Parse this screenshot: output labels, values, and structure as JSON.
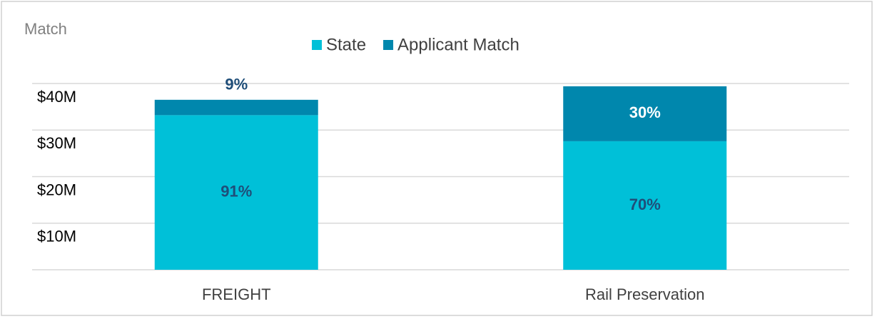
{
  "chart_data": {
    "type": "stacked_bar",
    "title": "Match",
    "categories": [
      "FREIGHT",
      "Rail Preservation"
    ],
    "series": [
      {
        "name": "State",
        "color": "#00c0d8",
        "values": [
          33.2,
          27.6
        ],
        "value_labels": [
          "91%",
          "70%"
        ]
      },
      {
        "name": "Applicant Match",
        "color": "#0087ad",
        "values": [
          3.3,
          11.8
        ],
        "value_labels": [
          "9%",
          "30%"
        ]
      }
    ],
    "ylim": [
      0,
      40
    ],
    "yticks": [
      {
        "value": 10,
        "label": "$10M"
      },
      {
        "value": 20,
        "label": "$20M"
      },
      {
        "value": 30,
        "label": "$30M"
      },
      {
        "value": 40,
        "label": "$40M"
      }
    ],
    "grid": true,
    "legend": "top"
  }
}
